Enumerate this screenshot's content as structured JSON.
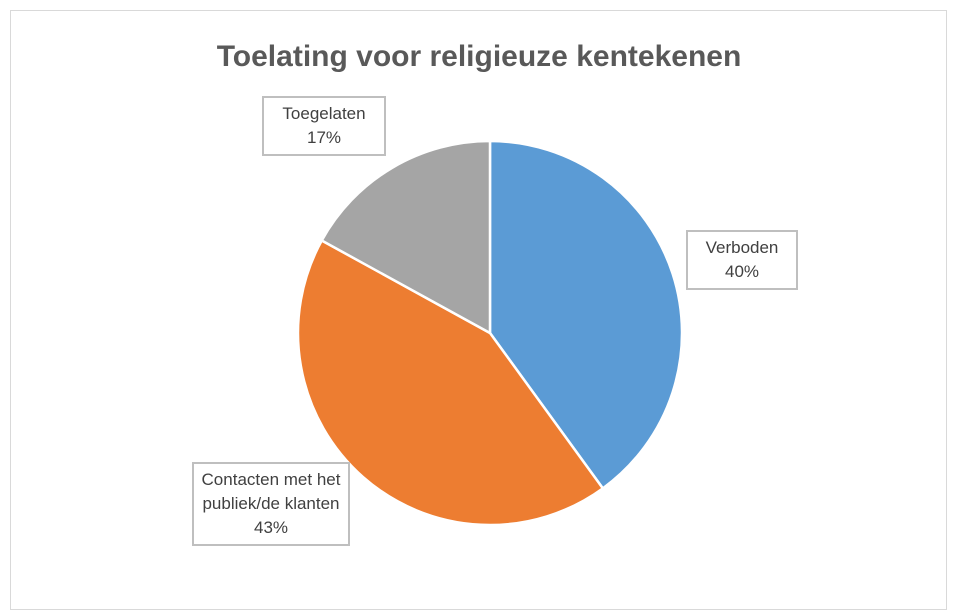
{
  "chart_data": {
    "type": "pie",
    "title": "Toelating voor religieuze kentekenen",
    "categories": [
      "Verboden",
      "Contacten met het publiek/de klanten",
      "Toegelaten"
    ],
    "values": [
      40,
      43,
      17
    ],
    "value_labels": [
      "40%",
      "43%",
      "17%"
    ],
    "colors": [
      "#5b9bd5",
      "#ed7d31",
      "#a5a5a5"
    ]
  }
}
